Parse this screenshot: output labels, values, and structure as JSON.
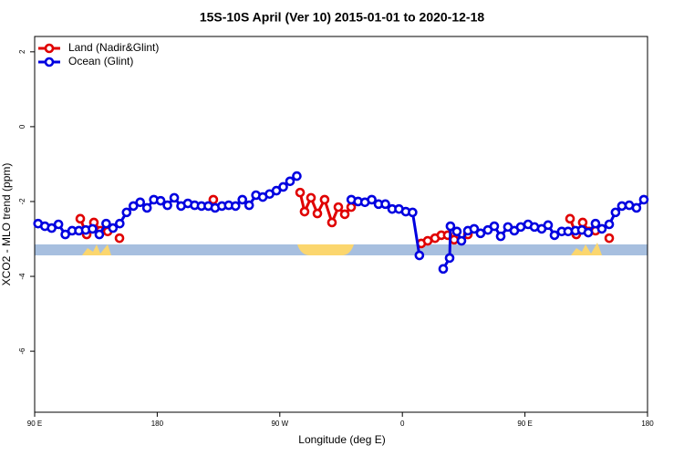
{
  "chart_data": {
    "type": "line",
    "title": "15S-10S April (Ver 10)   2015-01-01 to 2020-12-18",
    "xlabel": "Longitude (deg E)",
    "ylabel": "XCO2 - MLO trend (ppm)",
    "xlim": [
      90,
      540
    ],
    "ylim": [
      -7.63,
      2.41
    ],
    "xticks": [
      {
        "value": 90,
        "label": "90 E"
      },
      180,
      {
        "value": 270,
        "label": "90 W"
      },
      {
        "value": 360,
        "label": "0"
      },
      {
        "value": 450,
        "label": "90 E"
      },
      {
        "value": 540,
        "label": "180"
      }
    ],
    "yticks": [
      2,
      0,
      -2,
      -4,
      -6
    ],
    "legend": "top-left",
    "series": [
      {
        "name": "Land (Nadir&Glint)",
        "color": "#e00000",
        "x": [
          123.5,
          128.2,
          133.5,
          138.2,
          143.6,
          null,
          152.3,
          null,
          221.2,
          null,
          284.9,
          288.2,
          292.9,
          297.6,
          302.9,
          308.3,
          313.0,
          317.7,
          322.4,
          null,
          373.9,
          378.6,
          384.0,
          388.6,
          393.3,
          398.0,
          null,
          408.1,
          null,
          483.1,
          487.7,
          492.4,
          497.1,
          501.8,
          null,
          511.9
        ],
        "values": [
          -2.46,
          -2.88,
          -2.56,
          -2.78,
          -2.8,
          null,
          -2.98,
          null,
          -1.95,
          null,
          -1.76,
          -2.27,
          -1.9,
          -2.32,
          -1.95,
          -2.56,
          -2.15,
          -2.34,
          -2.15,
          null,
          -3.12,
          -3.05,
          -2.98,
          -2.9,
          -2.9,
          -3.02,
          null,
          -2.88,
          null,
          -2.46,
          -2.88,
          -2.56,
          -2.8,
          -2.78,
          null,
          -2.98
        ]
      },
      {
        "name": "Ocean (Glint)",
        "color": "#0000e0",
        "x": [
          92.5,
          97.5,
          102.5,
          107.5,
          112.5,
          117.5,
          122.5,
          127.5,
          132.5,
          137.5,
          142.5,
          147.5,
          152.5,
          157.5,
          162.5,
          167.5,
          172.5,
          177.5,
          182.5,
          187.5,
          192.5,
          197.5,
          202.5,
          207.5,
          212.5,
          217.5,
          222.5,
          227.5,
          232.5,
          237.5,
          242.5,
          247.5,
          252.5,
          257.5,
          262.5,
          267.5,
          272.5,
          277.5,
          282.5,
          null,
          322.5,
          327.5,
          332.5,
          337.5,
          342.5,
          347.5,
          352.5,
          357.5,
          362.5,
          367.5,
          372.5,
          null,
          390.0,
          394.7,
          395.3,
          400.0,
          403.4,
          408.1,
          412.7,
          417.4,
          422.8,
          427.5,
          432.2,
          437.5,
          442.2,
          446.9,
          452.3,
          457.0,
          462.3,
          467.0,
          471.7,
          477.0,
          481.7,
          487.1,
          491.8,
          496.5,
          501.8,
          506.5,
          511.9,
          516.5,
          521.2,
          526.6,
          531.9,
          537.3
        ],
        "values": [
          -2.59,
          -2.66,
          -2.71,
          -2.61,
          -2.88,
          -2.78,
          -2.78,
          -2.76,
          -2.73,
          -2.88,
          -2.59,
          -2.71,
          -2.59,
          -2.29,
          -2.12,
          -2.02,
          -2.17,
          -1.95,
          -1.98,
          -2.1,
          -1.9,
          -2.12,
          -2.05,
          -2.1,
          -2.12,
          -2.12,
          -2.17,
          -2.12,
          -2.1,
          -2.12,
          -1.95,
          -2.1,
          -1.83,
          -1.88,
          -1.8,
          -1.71,
          -1.61,
          -1.46,
          -1.32,
          null,
          -1.95,
          -2.0,
          -2.02,
          -1.95,
          -2.07,
          -2.07,
          -2.2,
          -2.2,
          -2.27,
          -2.29,
          -3.44,
          null,
          -3.8,
          -3.51,
          -2.66,
          -2.8,
          -3.05,
          -2.78,
          -2.73,
          -2.85,
          -2.76,
          -2.66,
          -2.93,
          -2.68,
          -2.78,
          -2.68,
          -2.61,
          -2.68,
          -2.73,
          -2.63,
          -2.9,
          -2.8,
          -2.8,
          -2.78,
          -2.76,
          -2.83,
          -2.59,
          -2.73,
          -2.61,
          -2.29,
          -2.12,
          -2.1,
          -2.17,
          -1.95
        ]
      }
    ]
  }
}
